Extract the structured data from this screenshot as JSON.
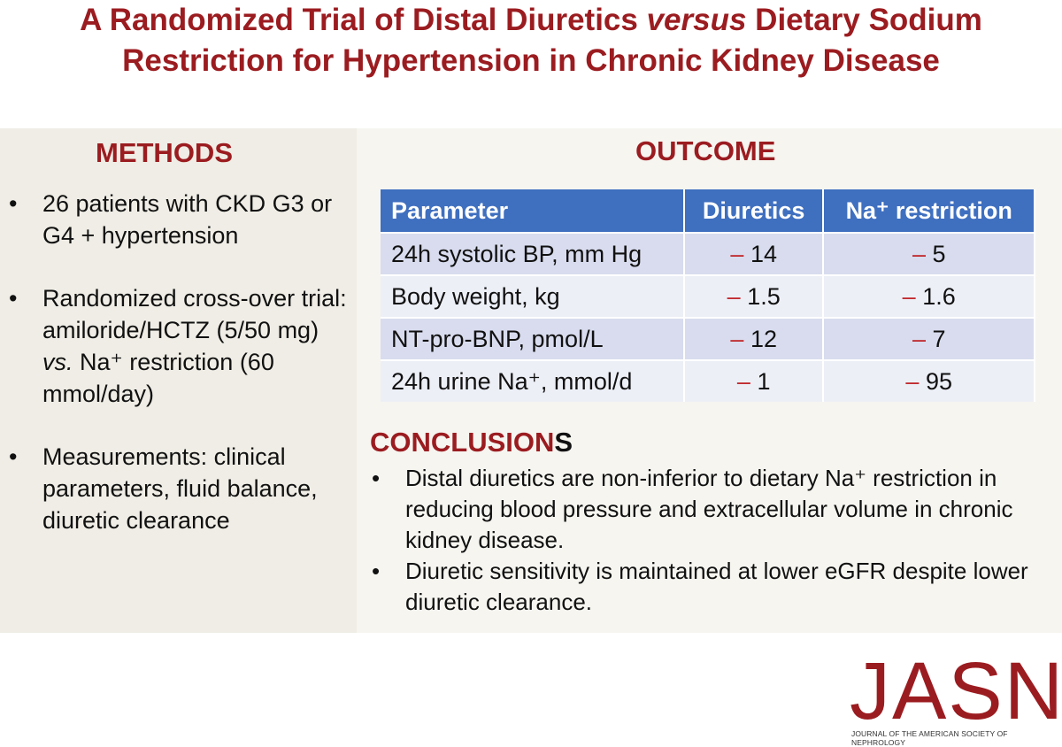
{
  "header": {
    "title": {
      "line1": {
        "before": "A Randomized Trial of Distal Diuretics ",
        "emphasis": "versus",
        "after": " Dietary Sodium"
      },
      "line2": "Restriction for Hypertension in Chronic Kidney Disease"
    }
  },
  "methods": {
    "heading": "METHODS",
    "bullets": [
      {
        "text": "26 patients with CKD G3 or G4 + hypertension"
      },
      {
        "before": "Randomized cross-over trial: amiloride/HCTZ (5/50 mg) ",
        "emphasis": "vs.",
        "after": " Na⁺ restriction (60 mmol/day)"
      },
      {
        "text": "Measurements: clinical parameters, fluid balance, diuretic clearance"
      }
    ]
  },
  "outcome": {
    "heading": "OUTCOME",
    "table": {
      "columns": [
        "Parameter",
        "Diuretics",
        "Na⁺ restriction"
      ],
      "rows": [
        [
          "24h systolic BP, mm Hg",
          {
            "sign": "–",
            "number": "14"
          },
          {
            "sign": "–",
            "number": "5"
          }
        ],
        [
          "Body weight, kg",
          {
            "sign": "–",
            "number": "1.5"
          },
          {
            "sign": "–",
            "number": "1.6"
          }
        ],
        [
          "NT-pro-BNP, pmol/L",
          {
            "sign": "–",
            "number": "12"
          },
          {
            "sign": "–",
            "number": "7"
          }
        ],
        [
          "24h urine Na⁺, mmol/d",
          {
            "sign": "–",
            "number": "1"
          },
          {
            "sign": "–",
            "number": "95"
          }
        ]
      ]
    }
  },
  "conclusions": {
    "heading": {
      "main": "CONCLUSION",
      "last": "S"
    },
    "bullets": [
      "Distal diuretics are non-inferior to dietary Na⁺ restriction in reducing blood pressure and extracellular volume in chronic kidney disease.",
      "Diuretic sensitivity is maintained at lower eGFR despite lower diuretic clearance."
    ]
  },
  "footer": {
    "logo": "JASN",
    "journal": "JOURNAL OF THE AMERICAN SOCIETY OF NEPHROLOGY"
  }
}
